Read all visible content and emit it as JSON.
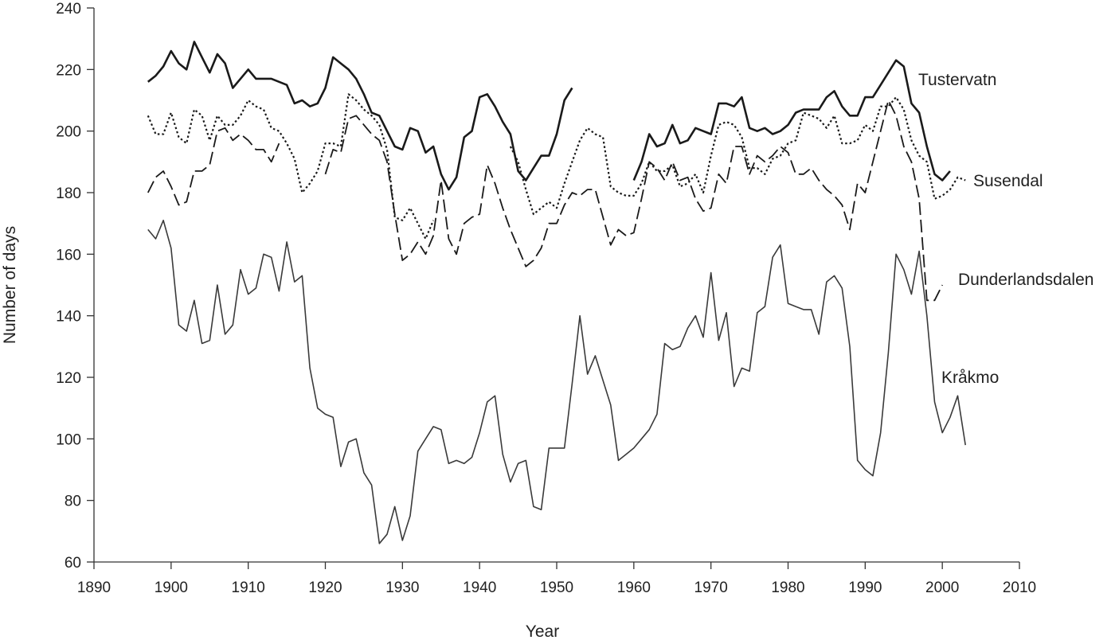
{
  "chart_data": {
    "type": "line",
    "title": "",
    "xlabel": "Year",
    "ylabel": "Number of days",
    "xlim": [
      1890,
      2010
    ],
    "ylim": [
      60,
      240
    ],
    "xticks": [
      1890,
      1900,
      1910,
      1920,
      1930,
      1940,
      1950,
      1960,
      1970,
      1980,
      1990,
      2000,
      2010
    ],
    "yticks": [
      60,
      80,
      100,
      120,
      140,
      160,
      180,
      200,
      220,
      240
    ],
    "grid": false,
    "legend": "labels at line ends (right)",
    "series": [
      {
        "name": "Tustervatn",
        "style": "solid-bold",
        "color": "#1a1a1a",
        "x": [
          1897,
          1898,
          1899,
          1900,
          1901,
          1902,
          1903,
          1904,
          1905,
          1906,
          1907,
          1908,
          1909,
          1910,
          1911,
          1912,
          1913,
          1914,
          1915,
          1916,
          1917,
          1918,
          1919,
          1920,
          1921,
          1922,
          1923,
          1924,
          1925,
          1926,
          1927,
          1928,
          1929,
          1930,
          1931,
          1932,
          1933,
          1934,
          1935,
          1936,
          1937,
          1938,
          1939,
          1940,
          1941,
          1942,
          1943,
          1944,
          1945,
          1946,
          1947,
          1948,
          1949,
          1950,
          1951,
          1952,
          1953,
          null,
          1960,
          1961,
          1962,
          1963,
          1964,
          1965,
          1966,
          1967,
          1968,
          1969,
          1970,
          1971,
          1972,
          1973,
          1974,
          1975,
          1976,
          1977,
          1978,
          1979,
          1980,
          1981,
          1982,
          1983,
          1984,
          1985,
          1986,
          1987,
          1988,
          1989,
          1990,
          1991,
          1992,
          1993,
          1994,
          1995,
          1996,
          1997,
          1998,
          1999,
          2000,
          2001
        ],
        "y": [
          216,
          218,
          221,
          226,
          222,
          220,
          229,
          224,
          219,
          225,
          222,
          214,
          217,
          220,
          217,
          217,
          217,
          216,
          215,
          209,
          210,
          208,
          209,
          214,
          224,
          222,
          220,
          217,
          212,
          206,
          205,
          200,
          195,
          194,
          201,
          200,
          193,
          195,
          186,
          181,
          185,
          198,
          200,
          211,
          212,
          208,
          203,
          199,
          187,
          184,
          188,
          192,
          192,
          199,
          210,
          214,
          null,
          null,
          184,
          190,
          199,
          195,
          196,
          202,
          196,
          197,
          201,
          200,
          199,
          209,
          209,
          208,
          211,
          201,
          200,
          201,
          199,
          200,
          202,
          206,
          207,
          207,
          207,
          211,
          213,
          208,
          205,
          205,
          211,
          211,
          215,
          219,
          223,
          221,
          209,
          206,
          195,
          186,
          184,
          187
        ]
      },
      {
        "name": "Susendal",
        "style": "dotted",
        "color": "#1a1a1a",
        "x": [
          1897,
          1898,
          1899,
          1900,
          1901,
          1902,
          1903,
          1904,
          1905,
          1906,
          1907,
          1908,
          1909,
          1910,
          1911,
          1912,
          1913,
          1914,
          1915,
          1916,
          1917,
          1918,
          1919,
          1920,
          1921,
          1922,
          1923,
          1924,
          1925,
          1926,
          1927,
          1928,
          1929,
          1930,
          1931,
          1932,
          1933,
          1934,
          1935,
          1936,
          1937,
          1938,
          1939,
          1940,
          1941,
          1942,
          1943,
          null,
          1944,
          1945,
          1946,
          1947,
          1948,
          1949,
          1950,
          1951,
          1952,
          1953,
          1954,
          1955,
          1956,
          1957,
          1958,
          1959,
          1960,
          1961,
          1962,
          1963,
          1964,
          1965,
          1966,
          1967,
          1968,
          1969,
          1970,
          1971,
          1972,
          1973,
          1974,
          1975,
          1976,
          1977,
          1978,
          1979,
          1980,
          1981,
          1982,
          1983,
          1984,
          1985,
          1986,
          1987,
          1988,
          1989,
          1990,
          1991,
          1992,
          1993,
          1994,
          1995,
          1996,
          1997,
          1998,
          1999,
          2000,
          2001,
          2002,
          2003
        ],
        "y": [
          205,
          199,
          199,
          206,
          198,
          196,
          207,
          205,
          197,
          205,
          202,
          202,
          205,
          210,
          208,
          207,
          201,
          200,
          196,
          191,
          180,
          183,
          187,
          196,
          196,
          195,
          212,
          210,
          207,
          205,
          202,
          194,
          172,
          171,
          175,
          170,
          165,
          171,
          null,
          null,
          null,
          null,
          null,
          null,
          null,
          null,
          null,
          null,
          195,
          190,
          181,
          173,
          175,
          177,
          175,
          183,
          190,
          197,
          201,
          199,
          198,
          182,
          180,
          179,
          179,
          183,
          190,
          187,
          187,
          189,
          182,
          183,
          186,
          180,
          192,
          202,
          203,
          202,
          198,
          188,
          188,
          186,
          191,
          192,
          196,
          197,
          206,
          205,
          204,
          201,
          205,
          196,
          196,
          197,
          202,
          200,
          208,
          208,
          211,
          207,
          197,
          192,
          190,
          178,
          179,
          181,
          185,
          184
        ]
      },
      {
        "name": "Dunderlandsdalen",
        "style": "long-dash",
        "color": "#1a1a1a",
        "x": [
          1897,
          1898,
          1899,
          1900,
          1901,
          1902,
          1903,
          1904,
          1905,
          1906,
          1907,
          1908,
          1909,
          1910,
          1911,
          1912,
          1913,
          1914,
          1915,
          1916,
          1917,
          1918,
          1919,
          1920,
          1921,
          1922,
          1923,
          1924,
          1925,
          1926,
          1927,
          1928,
          1929,
          1930,
          1931,
          1932,
          1933,
          1934,
          1935,
          1936,
          1937,
          1938,
          1939,
          1940,
          1941,
          1942,
          1943,
          1944,
          1945,
          1946,
          1947,
          1948,
          1949,
          1950,
          1951,
          1952,
          1953,
          1954,
          1955,
          1956,
          1957,
          1958,
          1959,
          1960,
          1961,
          1962,
          1963,
          1964,
          1965,
          1966,
          1967,
          1968,
          1969,
          1970,
          1971,
          1972,
          1973,
          1974,
          1975,
          1976,
          1977,
          1978,
          1979,
          1980,
          1981,
          1982,
          1983,
          1984,
          1985,
          1986,
          1987,
          1988,
          1989,
          1990,
          1991,
          1992,
          1993,
          1994,
          1995,
          1996,
          1997,
          1998,
          1999,
          2000,
          2001
        ],
        "y": [
          180,
          185,
          187,
          182,
          176,
          177,
          187,
          187,
          189,
          200,
          201,
          197,
          199,
          197,
          194,
          194,
          190,
          196,
          null,
          null,
          null,
          null,
          null,
          186,
          194,
          193,
          204,
          205,
          202,
          199,
          197,
          190,
          173,
          158,
          160,
          164,
          160,
          166,
          184,
          165,
          160,
          170,
          172,
          173,
          189,
          183,
          175,
          168,
          162,
          156,
          158,
          162,
          170,
          170,
          176,
          180,
          179,
          181,
          181,
          172,
          163,
          168,
          166,
          167,
          178,
          190,
          188,
          184,
          190,
          184,
          185,
          178,
          174,
          175,
          186,
          183,
          195,
          195,
          186,
          192,
          190,
          192,
          195,
          193,
          186,
          186,
          188,
          184,
          181,
          179,
          176,
          168,
          183,
          180,
          190,
          200,
          210,
          205,
          195,
          190,
          178,
          145,
          145,
          150,
          null
        ]
      },
      {
        "name": "Kråkmo",
        "style": "solid-thin",
        "color": "#3a3a3a",
        "x": [
          1897,
          1898,
          1899,
          1900,
          1901,
          1902,
          1903,
          1904,
          1905,
          1906,
          1907,
          1908,
          1909,
          1910,
          1911,
          1912,
          1913,
          1914,
          1915,
          1916,
          1917,
          1918,
          1919,
          1920,
          1921,
          1922,
          1923,
          1924,
          1925,
          1926,
          1927,
          1928,
          1929,
          1930,
          1931,
          1932,
          1933,
          1934,
          1935,
          1936,
          1937,
          1938,
          1939,
          1940,
          1941,
          1942,
          1943,
          1944,
          1945,
          1946,
          1947,
          1948,
          1949,
          1950,
          1951,
          1952,
          1953,
          1954,
          1955,
          1956,
          1957,
          1958,
          1959,
          1960,
          1961,
          1962,
          1963,
          1964,
          1965,
          1966,
          1967,
          1968,
          1969,
          1970,
          1971,
          1972,
          1973,
          1974,
          1975,
          1976,
          1977,
          1978,
          1979,
          1980,
          1981,
          1982,
          1983,
          1984,
          1985,
          1986,
          1987,
          1988,
          1989,
          1990,
          1991,
          1992,
          1993,
          1994,
          1995,
          1996,
          1997,
          1998,
          1999,
          2000,
          2001,
          2002,
          2003
        ],
        "y": [
          168,
          165,
          171,
          162,
          137,
          135,
          145,
          131,
          132,
          150,
          134,
          137,
          155,
          147,
          149,
          160,
          159,
          148,
          164,
          151,
          153,
          123,
          110,
          108,
          107,
          91,
          99,
          100,
          89,
          85,
          66,
          69,
          78,
          67,
          75,
          96,
          100,
          104,
          103,
          92,
          93,
          92,
          94,
          102,
          112,
          114,
          95,
          86,
          92,
          93,
          78,
          77,
          97,
          97,
          97,
          118,
          140,
          121,
          127,
          119,
          111,
          93,
          95,
          97,
          100,
          103,
          108,
          131,
          129,
          130,
          136,
          140,
          133,
          154,
          132,
          141,
          117,
          123,
          122,
          141,
          143,
          159,
          163,
          144,
          143,
          142,
          142,
          134,
          151,
          153,
          149,
          130,
          93,
          90,
          88,
          102,
          128,
          160,
          155,
          147,
          161,
          140,
          112,
          102,
          107,
          114,
          98
        ]
      }
    ]
  }
}
